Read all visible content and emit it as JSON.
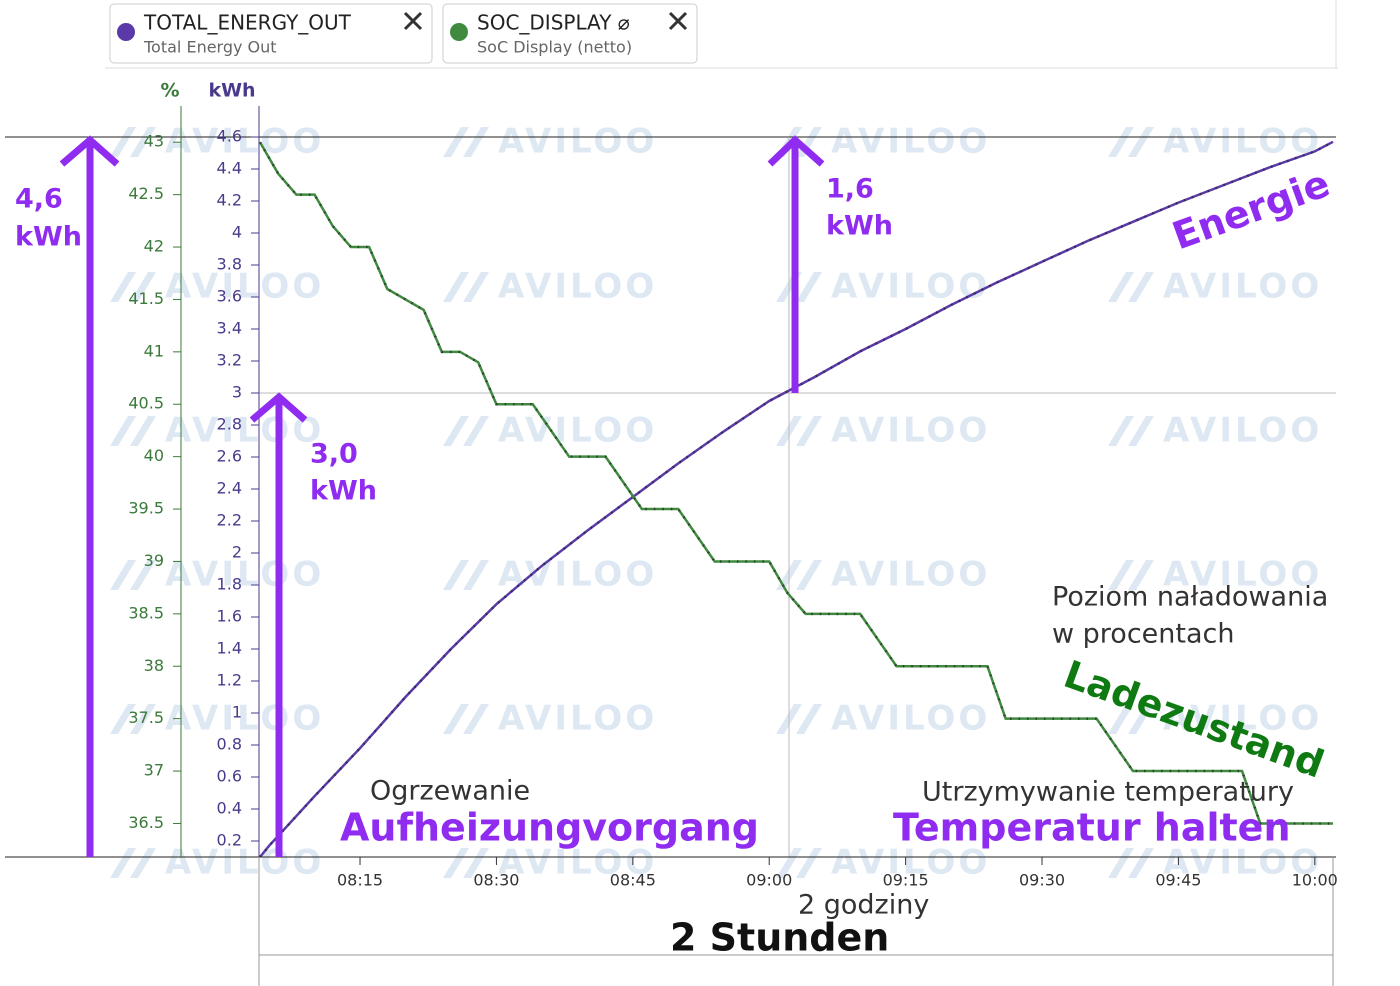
{
  "chart_data": {
    "type": "line",
    "watermark": "AVILOO",
    "y_label": "kWh",
    "y2_label": "%",
    "xlim": [
      "08:04",
      "10:02"
    ],
    "xticks": [
      "08:15",
      "08:30",
      "08:45",
      "09:00",
      "09:15",
      "09:30",
      "09:45",
      "10:00"
    ],
    "ylim": [
      0.1,
      4.6
    ],
    "yticks": [
      0.2,
      0.4,
      0.6,
      0.8,
      1,
      1.2,
      1.4,
      1.6,
      1.8,
      2,
      2.2,
      2.4,
      2.6,
      2.8,
      3,
      3.2,
      3.4,
      3.6,
      3.8,
      4,
      4.2,
      4.4,
      4.6
    ],
    "y2lim": [
      36.18,
      43.05
    ],
    "y2ticks": [
      36.5,
      37,
      37.5,
      38,
      38.5,
      39,
      39.5,
      40,
      40.5,
      41,
      41.5,
      42,
      42.5,
      43
    ],
    "series": [
      {
        "name": "TOTAL_ENERGY_OUT",
        "description": "Total Energy Out",
        "color": "#5a3aa8",
        "x": [
          "08:04",
          "08:05",
          "08:10",
          "08:15",
          "08:20",
          "08:25",
          "08:30",
          "08:35",
          "08:40",
          "08:45",
          "08:50",
          "08:55",
          "09:00",
          "09:05",
          "09:10",
          "09:15",
          "09:20",
          "09:25",
          "09:30",
          "09:35",
          "09:40",
          "09:45",
          "09:50",
          "09:55",
          "10:00",
          "10:02"
        ],
        "values": [
          0.1,
          0.17,
          0.48,
          0.78,
          1.1,
          1.4,
          1.68,
          1.92,
          2.14,
          2.35,
          2.56,
          2.76,
          2.95,
          3.1,
          3.26,
          3.4,
          3.55,
          3.69,
          3.82,
          3.95,
          4.07,
          4.19,
          4.3,
          4.41,
          4.51,
          4.57
        ]
      },
      {
        "name": "SOC_DISPLAY ⌀",
        "description": "SoC Display (netto)",
        "color": "#3f8a3f",
        "axis": "y2",
        "x": [
          "08:04",
          "08:06",
          "08:08",
          "08:10",
          "08:12",
          "08:14",
          "08:16",
          "08:18",
          "08:20",
          "08:22",
          "08:24",
          "08:26",
          "08:28",
          "08:30",
          "08:34",
          "08:38",
          "08:42",
          "08:46",
          "08:50",
          "08:54",
          "09:00",
          "09:02",
          "09:04",
          "09:10",
          "09:14",
          "09:24",
          "09:26",
          "09:36",
          "09:40",
          "09:52",
          "09:54",
          "10:02"
        ],
        "values": [
          43.0,
          42.7,
          42.5,
          42.5,
          42.2,
          42.0,
          42.0,
          41.6,
          41.5,
          41.4,
          41.0,
          41.0,
          40.9,
          40.5,
          40.5,
          40.0,
          40.0,
          39.5,
          39.5,
          39.0,
          39.0,
          38.7,
          38.5,
          38.5,
          38.0,
          38.0,
          37.5,
          37.5,
          37.0,
          37.0,
          36.5,
          36.5
        ]
      }
    ],
    "annotations": [
      "4,6",
      "kWh",
      "1,6",
      "kWh",
      "3,0",
      "kWh",
      "Energie",
      "Poziom naładowania",
      "w procentach",
      "Ladezustand",
      "Ogrzewanie",
      "Aufheizungvorgang",
      "Utrzymywanie temperatury",
      "Temperatur halten",
      "2 godziny",
      "2 Stunden"
    ]
  }
}
